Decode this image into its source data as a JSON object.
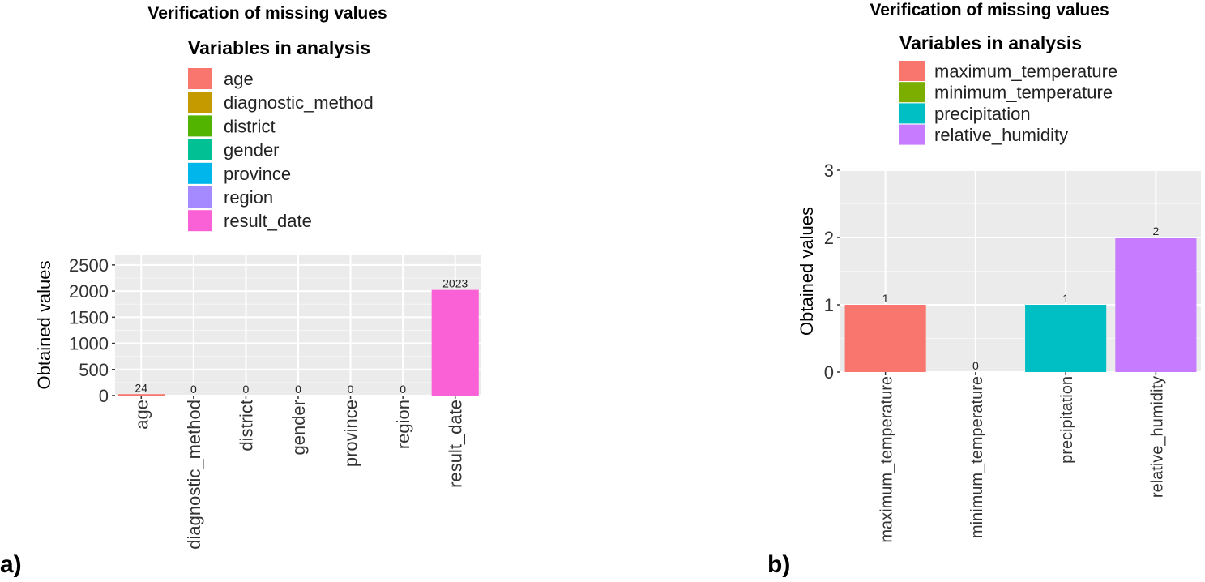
{
  "panel_labels": [
    "a)",
    "b)"
  ],
  "chart_data": [
    {
      "type": "bar",
      "title": "Verification of missing values",
      "legend_title": "Variables in analysis",
      "legend_position": "top",
      "ylabel": "Obtained values",
      "xlabel": "",
      "ylim": [
        0,
        2700
      ],
      "yticks": [
        "0",
        "500",
        "1000",
        "1500",
        "2000",
        "2500"
      ],
      "ytick_values": [
        0,
        500,
        1000,
        1500,
        2000,
        2500
      ],
      "grid": true,
      "categories": [
        "age",
        "diagnostic_method",
        "district",
        "gender",
        "province",
        "region",
        "result_date"
      ],
      "values": [
        24,
        0,
        0,
        0,
        0,
        0,
        2023
      ],
      "data_labels": [
        "24",
        "0",
        "0",
        "0",
        "0",
        "0",
        "2023"
      ],
      "colors": [
        "#F8766D",
        "#C49A00",
        "#53B400",
        "#00C094",
        "#00B6EB",
        "#A58AFF",
        "#FB61D7"
      ]
    },
    {
      "type": "bar",
      "title": "Verification of missing values",
      "legend_title": "Variables in analysis",
      "legend_position": "top",
      "ylabel": "Obtained values",
      "xlabel": "",
      "ylim": [
        0,
        3
      ],
      "yticks": [
        "0",
        "1",
        "2",
        "3"
      ],
      "ytick_values": [
        0,
        1,
        2,
        3
      ],
      "grid": true,
      "categories": [
        "maximum_temperature",
        "minimum_temperature",
        "precipitation",
        "relative_humidity"
      ],
      "values": [
        1,
        0,
        1,
        2
      ],
      "data_labels": [
        "1",
        "0",
        "1",
        "2"
      ],
      "colors": [
        "#F8766D",
        "#7CAE00",
        "#00BFC4",
        "#C77CFF"
      ]
    }
  ]
}
